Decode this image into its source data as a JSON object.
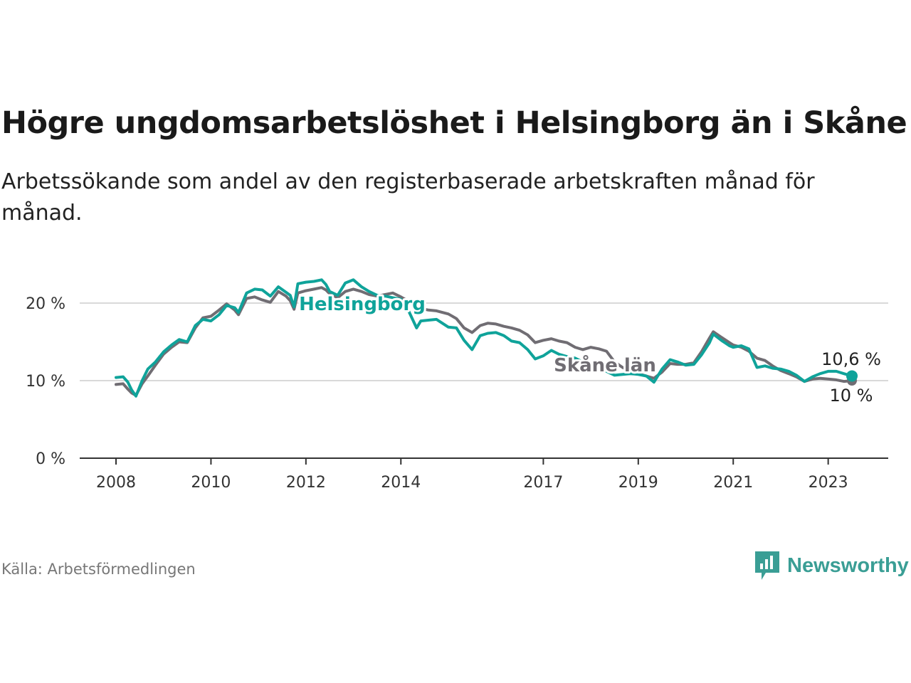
{
  "header": {
    "title": "Högre ungdomsarbetslöshet i Helsingborg än i Skåne",
    "subtitle": "Arbetssökande som andel av den registerbaserade arbetskraften månad för månad."
  },
  "footer": {
    "source": "Källa: Arbetsförmedlingen",
    "brand": "Newsworthy"
  },
  "colors": {
    "helsingborg": "#0fa39a",
    "skane": "#706d73",
    "grid": "#d9d9d9",
    "axis": "#333333"
  },
  "chart_data": {
    "type": "line",
    "title": "Högre ungdomsarbetslöshet i Helsingborg än i Skåne",
    "xlabel": "",
    "ylabel": "",
    "ylim": [
      0,
      20
    ],
    "xlim": [
      2008,
      2023.5
    ],
    "y_ticks": [
      0,
      10,
      20
    ],
    "y_tick_labels": [
      "0 %",
      "10 %",
      "20 %"
    ],
    "x_ticks": [
      2008,
      2010,
      2012,
      2014,
      2017,
      2019,
      2021,
      2023
    ],
    "x_tick_labels": [
      "2008",
      "2010",
      "2012",
      "2014",
      "2017",
      "2019",
      "2021",
      "2023"
    ],
    "grid": true,
    "series": [
      {
        "name": "Helsingborg",
        "label": "Helsingborg",
        "end_label": "10,6 %",
        "end_value": 10.6,
        "points": [
          [
            2008.0,
            10.4
          ],
          [
            2008.15,
            10.5
          ],
          [
            2008.25,
            9.8
          ],
          [
            2008.33,
            8.8
          ],
          [
            2008.42,
            8.0
          ],
          [
            2008.55,
            10.0
          ],
          [
            2008.67,
            11.5
          ],
          [
            2008.83,
            12.4
          ],
          [
            2009.0,
            13.7
          ],
          [
            2009.17,
            14.6
          ],
          [
            2009.33,
            15.3
          ],
          [
            2009.5,
            15.0
          ],
          [
            2009.67,
            17.1
          ],
          [
            2009.83,
            17.9
          ],
          [
            2010.0,
            17.7
          ],
          [
            2010.17,
            18.5
          ],
          [
            2010.33,
            19.7
          ],
          [
            2010.5,
            19.4
          ],
          [
            2010.58,
            18.8
          ],
          [
            2010.75,
            21.3
          ],
          [
            2010.92,
            21.8
          ],
          [
            2011.08,
            21.7
          ],
          [
            2011.25,
            20.9
          ],
          [
            2011.42,
            22.1
          ],
          [
            2011.58,
            21.4
          ],
          [
            2011.67,
            21.0
          ],
          [
            2011.75,
            19.5
          ],
          [
            2011.83,
            22.5
          ],
          [
            2012.0,
            22.7
          ],
          [
            2012.17,
            22.8
          ],
          [
            2012.33,
            23.0
          ],
          [
            2012.42,
            22.4
          ],
          [
            2012.5,
            21.5
          ],
          [
            2012.67,
            21.0
          ],
          [
            2012.83,
            22.6
          ],
          [
            2013.0,
            23.0
          ],
          [
            2013.17,
            22.1
          ],
          [
            2013.33,
            21.5
          ],
          [
            2013.5,
            21.0
          ],
          [
            2013.67,
            20.9
          ],
          [
            2013.83,
            20.7
          ],
          [
            2014.0,
            20.5
          ],
          [
            2014.17,
            18.9
          ],
          [
            2014.33,
            16.8
          ],
          [
            2014.42,
            17.7
          ],
          [
            2014.58,
            17.8
          ],
          [
            2014.75,
            17.9
          ],
          [
            2015.0,
            16.9
          ],
          [
            2015.17,
            16.8
          ],
          [
            2015.33,
            15.2
          ],
          [
            2015.5,
            14.0
          ],
          [
            2015.67,
            15.8
          ],
          [
            2015.83,
            16.1
          ],
          [
            2016.0,
            16.2
          ],
          [
            2016.17,
            15.8
          ],
          [
            2016.33,
            15.1
          ],
          [
            2016.5,
            14.9
          ],
          [
            2016.67,
            14.0
          ],
          [
            2016.83,
            12.8
          ],
          [
            2017.0,
            13.2
          ],
          [
            2017.17,
            13.9
          ],
          [
            2017.33,
            13.4
          ],
          [
            2017.5,
            13.1
          ],
          [
            2017.67,
            12.9
          ],
          [
            2017.83,
            12.4
          ],
          [
            2018.0,
            12.0
          ],
          [
            2018.17,
            11.6
          ],
          [
            2018.33,
            11.2
          ],
          [
            2018.5,
            10.7
          ],
          [
            2018.67,
            10.8
          ],
          [
            2018.83,
            10.9
          ],
          [
            2019.0,
            10.8
          ],
          [
            2019.17,
            10.6
          ],
          [
            2019.33,
            9.8
          ],
          [
            2019.5,
            11.5
          ],
          [
            2019.67,
            12.7
          ],
          [
            2019.83,
            12.4
          ],
          [
            2020.0,
            12.0
          ],
          [
            2020.17,
            12.1
          ],
          [
            2020.33,
            13.3
          ],
          [
            2020.5,
            14.9
          ],
          [
            2020.58,
            16.0
          ],
          [
            2020.75,
            15.2
          ],
          [
            2020.92,
            14.5
          ],
          [
            2021.0,
            14.3
          ],
          [
            2021.17,
            14.5
          ],
          [
            2021.33,
            14.1
          ],
          [
            2021.5,
            11.7
          ],
          [
            2021.67,
            11.9
          ],
          [
            2021.83,
            11.6
          ],
          [
            2022.0,
            11.5
          ],
          [
            2022.17,
            11.2
          ],
          [
            2022.33,
            10.7
          ],
          [
            2022.5,
            9.9
          ],
          [
            2022.67,
            10.5
          ],
          [
            2022.83,
            10.9
          ],
          [
            2023.0,
            11.2
          ],
          [
            2023.17,
            11.2
          ],
          [
            2023.33,
            10.9
          ],
          [
            2023.5,
            10.6
          ]
        ]
      },
      {
        "name": "Skåne län",
        "label": "Skåne län",
        "end_label": "10 %",
        "end_value": 10.0,
        "points": [
          [
            2008.0,
            9.5
          ],
          [
            2008.15,
            9.6
          ],
          [
            2008.25,
            8.9
          ],
          [
            2008.33,
            8.4
          ],
          [
            2008.42,
            8.1
          ],
          [
            2008.55,
            9.6
          ],
          [
            2008.67,
            10.6
          ],
          [
            2008.83,
            12.0
          ],
          [
            2009.0,
            13.4
          ],
          [
            2009.17,
            14.3
          ],
          [
            2009.33,
            15.0
          ],
          [
            2009.5,
            14.9
          ],
          [
            2009.67,
            16.8
          ],
          [
            2009.83,
            18.1
          ],
          [
            2010.0,
            18.3
          ],
          [
            2010.17,
            19.1
          ],
          [
            2010.33,
            19.9
          ],
          [
            2010.5,
            19.1
          ],
          [
            2010.58,
            18.5
          ],
          [
            2010.75,
            20.6
          ],
          [
            2010.92,
            20.8
          ],
          [
            2011.08,
            20.4
          ],
          [
            2011.25,
            20.1
          ],
          [
            2011.42,
            21.5
          ],
          [
            2011.58,
            20.9
          ],
          [
            2011.67,
            20.3
          ],
          [
            2011.75,
            19.2
          ],
          [
            2011.83,
            21.3
          ],
          [
            2012.0,
            21.6
          ],
          [
            2012.17,
            21.8
          ],
          [
            2012.33,
            22.0
          ],
          [
            2012.42,
            21.7
          ],
          [
            2012.5,
            21.2
          ],
          [
            2012.67,
            20.7
          ],
          [
            2012.83,
            21.5
          ],
          [
            2013.0,
            21.8
          ],
          [
            2013.17,
            21.5
          ],
          [
            2013.33,
            21.1
          ],
          [
            2013.5,
            20.9
          ],
          [
            2013.67,
            21.1
          ],
          [
            2013.83,
            21.3
          ],
          [
            2014.0,
            20.8
          ],
          [
            2014.17,
            20.2
          ],
          [
            2014.33,
            19.5
          ],
          [
            2014.42,
            19.3
          ],
          [
            2014.58,
            19.1
          ],
          [
            2014.75,
            19.0
          ],
          [
            2015.0,
            18.6
          ],
          [
            2015.17,
            18.0
          ],
          [
            2015.33,
            16.8
          ],
          [
            2015.5,
            16.2
          ],
          [
            2015.67,
            17.1
          ],
          [
            2015.83,
            17.4
          ],
          [
            2016.0,
            17.3
          ],
          [
            2016.17,
            17.0
          ],
          [
            2016.33,
            16.8
          ],
          [
            2016.5,
            16.5
          ],
          [
            2016.67,
            15.9
          ],
          [
            2016.83,
            14.9
          ],
          [
            2017.0,
            15.2
          ],
          [
            2017.17,
            15.4
          ],
          [
            2017.33,
            15.1
          ],
          [
            2017.5,
            14.9
          ],
          [
            2017.67,
            14.3
          ],
          [
            2017.83,
            14.0
          ],
          [
            2018.0,
            14.3
          ],
          [
            2018.17,
            14.1
          ],
          [
            2018.33,
            13.8
          ],
          [
            2018.5,
            12.4
          ],
          [
            2018.67,
            11.7
          ],
          [
            2018.83,
            11.2
          ],
          [
            2019.0,
            10.9
          ],
          [
            2019.17,
            10.6
          ],
          [
            2019.33,
            10.3
          ],
          [
            2019.5,
            11.1
          ],
          [
            2019.67,
            12.2
          ],
          [
            2019.83,
            12.1
          ],
          [
            2020.0,
            12.1
          ],
          [
            2020.17,
            12.3
          ],
          [
            2020.33,
            13.7
          ],
          [
            2020.5,
            15.5
          ],
          [
            2020.58,
            16.3
          ],
          [
            2020.75,
            15.6
          ],
          [
            2020.92,
            14.9
          ],
          [
            2021.0,
            14.6
          ],
          [
            2021.17,
            14.3
          ],
          [
            2021.33,
            13.8
          ],
          [
            2021.5,
            12.9
          ],
          [
            2021.67,
            12.6
          ],
          [
            2021.83,
            11.9
          ],
          [
            2022.0,
            11.3
          ],
          [
            2022.17,
            10.9
          ],
          [
            2022.33,
            10.5
          ],
          [
            2022.5,
            9.9
          ],
          [
            2022.67,
            10.2
          ],
          [
            2022.83,
            10.3
          ],
          [
            2023.0,
            10.2
          ],
          [
            2023.17,
            10.1
          ],
          [
            2023.33,
            9.9
          ],
          [
            2023.5,
            10.0
          ]
        ]
      }
    ]
  }
}
